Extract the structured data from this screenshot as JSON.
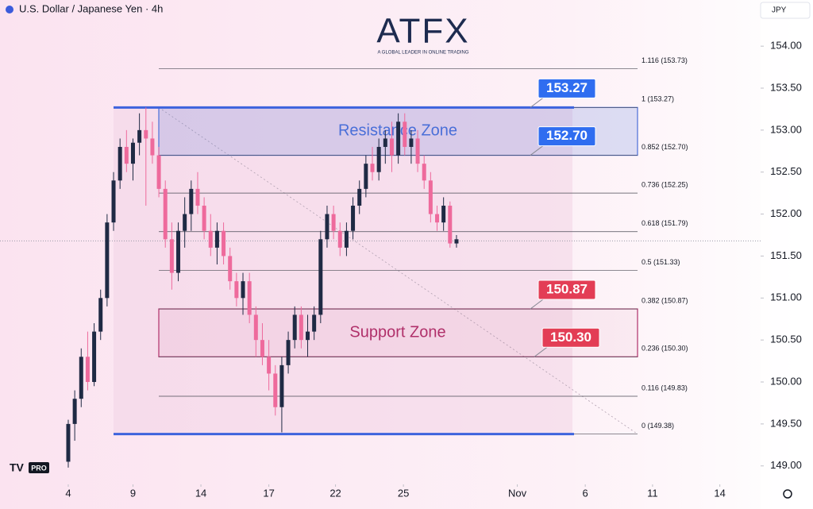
{
  "chart_data": {
    "type": "candlestick",
    "title": "U.S. Dollar / Japanese Yen · 4h",
    "currency": "JPY",
    "up_color": "#1f2a44",
    "down_color": "#ee6a9c",
    "ylim": [
      148.78,
      154.55
    ],
    "xlim": [
      -10.55,
      107
    ],
    "yticks": [
      {
        "value": 149,
        "label": "149.00"
      },
      {
        "value": 149.5,
        "label": "149.50"
      },
      {
        "value": 150,
        "label": "150.00"
      },
      {
        "value": 150.5,
        "label": "150.50"
      },
      {
        "value": 151,
        "label": "151.00"
      },
      {
        "value": 151.5,
        "label": "151.50"
      },
      {
        "value": 152,
        "label": "152.00"
      },
      {
        "value": 152.5,
        "label": "152.50"
      },
      {
        "value": 153,
        "label": "153.00"
      },
      {
        "value": 153.5,
        "label": "153.50"
      },
      {
        "value": 154,
        "label": "154.00"
      }
    ],
    "xticks": [
      {
        "value": 0,
        "label": "4"
      },
      {
        "value": 10,
        "label": "9"
      },
      {
        "value": 20.5,
        "label": "14"
      },
      {
        "value": 31,
        "label": "17"
      },
      {
        "value": 41.3,
        "label": "22"
      },
      {
        "value": 51.8,
        "label": "25"
      },
      {
        "value": 69.4,
        "label": "Nov"
      },
      {
        "value": 79.9,
        "label": "6"
      },
      {
        "value": 90.3,
        "label": "11"
      },
      {
        "value": 100.7,
        "label": "14"
      }
    ],
    "open": [
      149.05,
      149.5,
      149.8,
      150.3,
      150.0,
      150.6,
      151.0,
      151.9,
      152.4,
      152.8,
      152.6,
      152.85,
      153.0,
      152.9,
      152.7,
      152.3,
      151.7,
      151.3,
      151.8,
      152.0,
      152.3,
      152.1,
      151.8,
      151.6,
      151.8,
      151.5,
      151.2,
      151.0,
      151.2,
      150.8,
      150.5,
      150.3,
      150.1,
      149.7,
      150.2,
      150.5,
      150.8,
      150.5,
      150.6,
      150.8,
      151.7,
      152.0,
      151.8,
      151.6,
      151.8,
      152.1,
      152.3,
      152.6,
      152.5,
      152.8,
      152.9,
      152.7,
      153.1,
      152.8,
      152.9,
      152.6,
      152.4,
      152.0,
      151.9,
      152.1,
      151.65
    ],
    "high": [
      149.55,
      149.9,
      150.4,
      150.6,
      150.7,
      151.1,
      152.0,
      152.5,
      152.9,
      153.0,
      152.9,
      153.2,
      153.27,
      153.1,
      152.8,
      152.4,
      151.9,
      151.9,
      152.2,
      152.4,
      152.5,
      152.2,
      152.0,
      151.9,
      151.9,
      151.6,
      151.3,
      151.3,
      151.3,
      150.9,
      150.7,
      150.5,
      150.2,
      150.3,
      150.6,
      150.9,
      150.9,
      150.8,
      150.9,
      151.8,
      152.1,
      152.1,
      151.9,
      151.9,
      152.2,
      152.4,
      152.7,
      152.8,
      152.9,
      153.0,
      153.1,
      153.2,
      153.2,
      153.0,
      153.0,
      152.7,
      152.5,
      152.1,
      152.2,
      152.15,
      151.75
    ],
    "low": [
      148.98,
      149.3,
      149.7,
      149.9,
      149.95,
      150.5,
      150.9,
      151.8,
      152.3,
      152.5,
      152.4,
      152.7,
      152.1,
      152.6,
      152.2,
      151.6,
      151.1,
      151.2,
      151.6,
      151.8,
      152.0,
      151.7,
      151.5,
      151.4,
      151.4,
      151.1,
      150.9,
      150.8,
      150.7,
      150.3,
      150.2,
      149.9,
      149.6,
      149.4,
      150.1,
      150.4,
      150.4,
      150.3,
      150.5,
      150.7,
      151.6,
      151.7,
      151.5,
      151.5,
      151.7,
      152.0,
      152.2,
      152.4,
      152.4,
      152.6,
      152.5,
      152.6,
      152.7,
      152.6,
      152.5,
      152.3,
      151.9,
      151.8,
      151.8,
      151.6,
      151.6
    ],
    "close": [
      149.5,
      149.8,
      150.3,
      150.0,
      150.6,
      151.0,
      151.9,
      152.4,
      152.8,
      152.6,
      152.85,
      153.0,
      152.9,
      152.7,
      152.3,
      151.7,
      151.3,
      151.8,
      152.0,
      152.3,
      152.1,
      151.8,
      151.6,
      151.8,
      151.5,
      151.2,
      151.0,
      151.2,
      150.8,
      150.5,
      150.3,
      150.1,
      149.7,
      150.2,
      150.5,
      150.8,
      150.5,
      150.6,
      150.8,
      151.7,
      152.0,
      151.8,
      151.6,
      151.8,
      152.1,
      152.3,
      152.6,
      152.5,
      152.8,
      152.9,
      152.7,
      153.1,
      152.8,
      152.9,
      152.6,
      152.4,
      152.0,
      151.9,
      152.1,
      151.65,
      151.7
    ],
    "last_price": 151.68,
    "fib_levels": [
      {
        "value": 153.73,
        "label": "1.116 (153.73)"
      },
      {
        "value": 153.27,
        "label": "1 (153.27)"
      },
      {
        "value": 152.7,
        "label": "0.852 (152.70)"
      },
      {
        "value": 152.25,
        "label": "0.736 (152.25)"
      },
      {
        "value": 151.79,
        "label": "0.618 (151.79)"
      },
      {
        "value": 151.33,
        "label": "0.5 (151.33)"
      },
      {
        "value": 150.87,
        "label": "0.382 (150.87)"
      },
      {
        "value": 150.3,
        "label": "0.236 (150.30)"
      },
      {
        "value": 149.83,
        "label": "0.116 (149.83)"
      },
      {
        "value": 149.38,
        "label": "0 (149.38)"
      }
    ],
    "range_lines": [
      153.27,
      149.38
    ],
    "zones": [
      {
        "label": "Resistance Zone",
        "low": 152.7,
        "high": 153.27,
        "color": "#4a6fd8"
      },
      {
        "label": "Support Zone",
        "low": 150.3,
        "high": 150.87,
        "color": "#b0306a"
      }
    ],
    "price_callouts": [
      {
        "value": 153.27,
        "color": "#2f6df0"
      },
      {
        "value": {
          "value": 152.7,
          "label": "152.70"
        },
        "color": "#2f6df0"
      },
      {
        "value": 150.87,
        "color": "#e33d55"
      },
      {
        "value": {
          "value": 150.3,
          "label": "150.30"
        },
        "color": "#e33d55"
      }
    ]
  },
  "branding": {
    "logo": "ATFX",
    "tagline": "A GLOBAL LEADER IN ONLINE TRADING",
    "badge": "PRO"
  }
}
